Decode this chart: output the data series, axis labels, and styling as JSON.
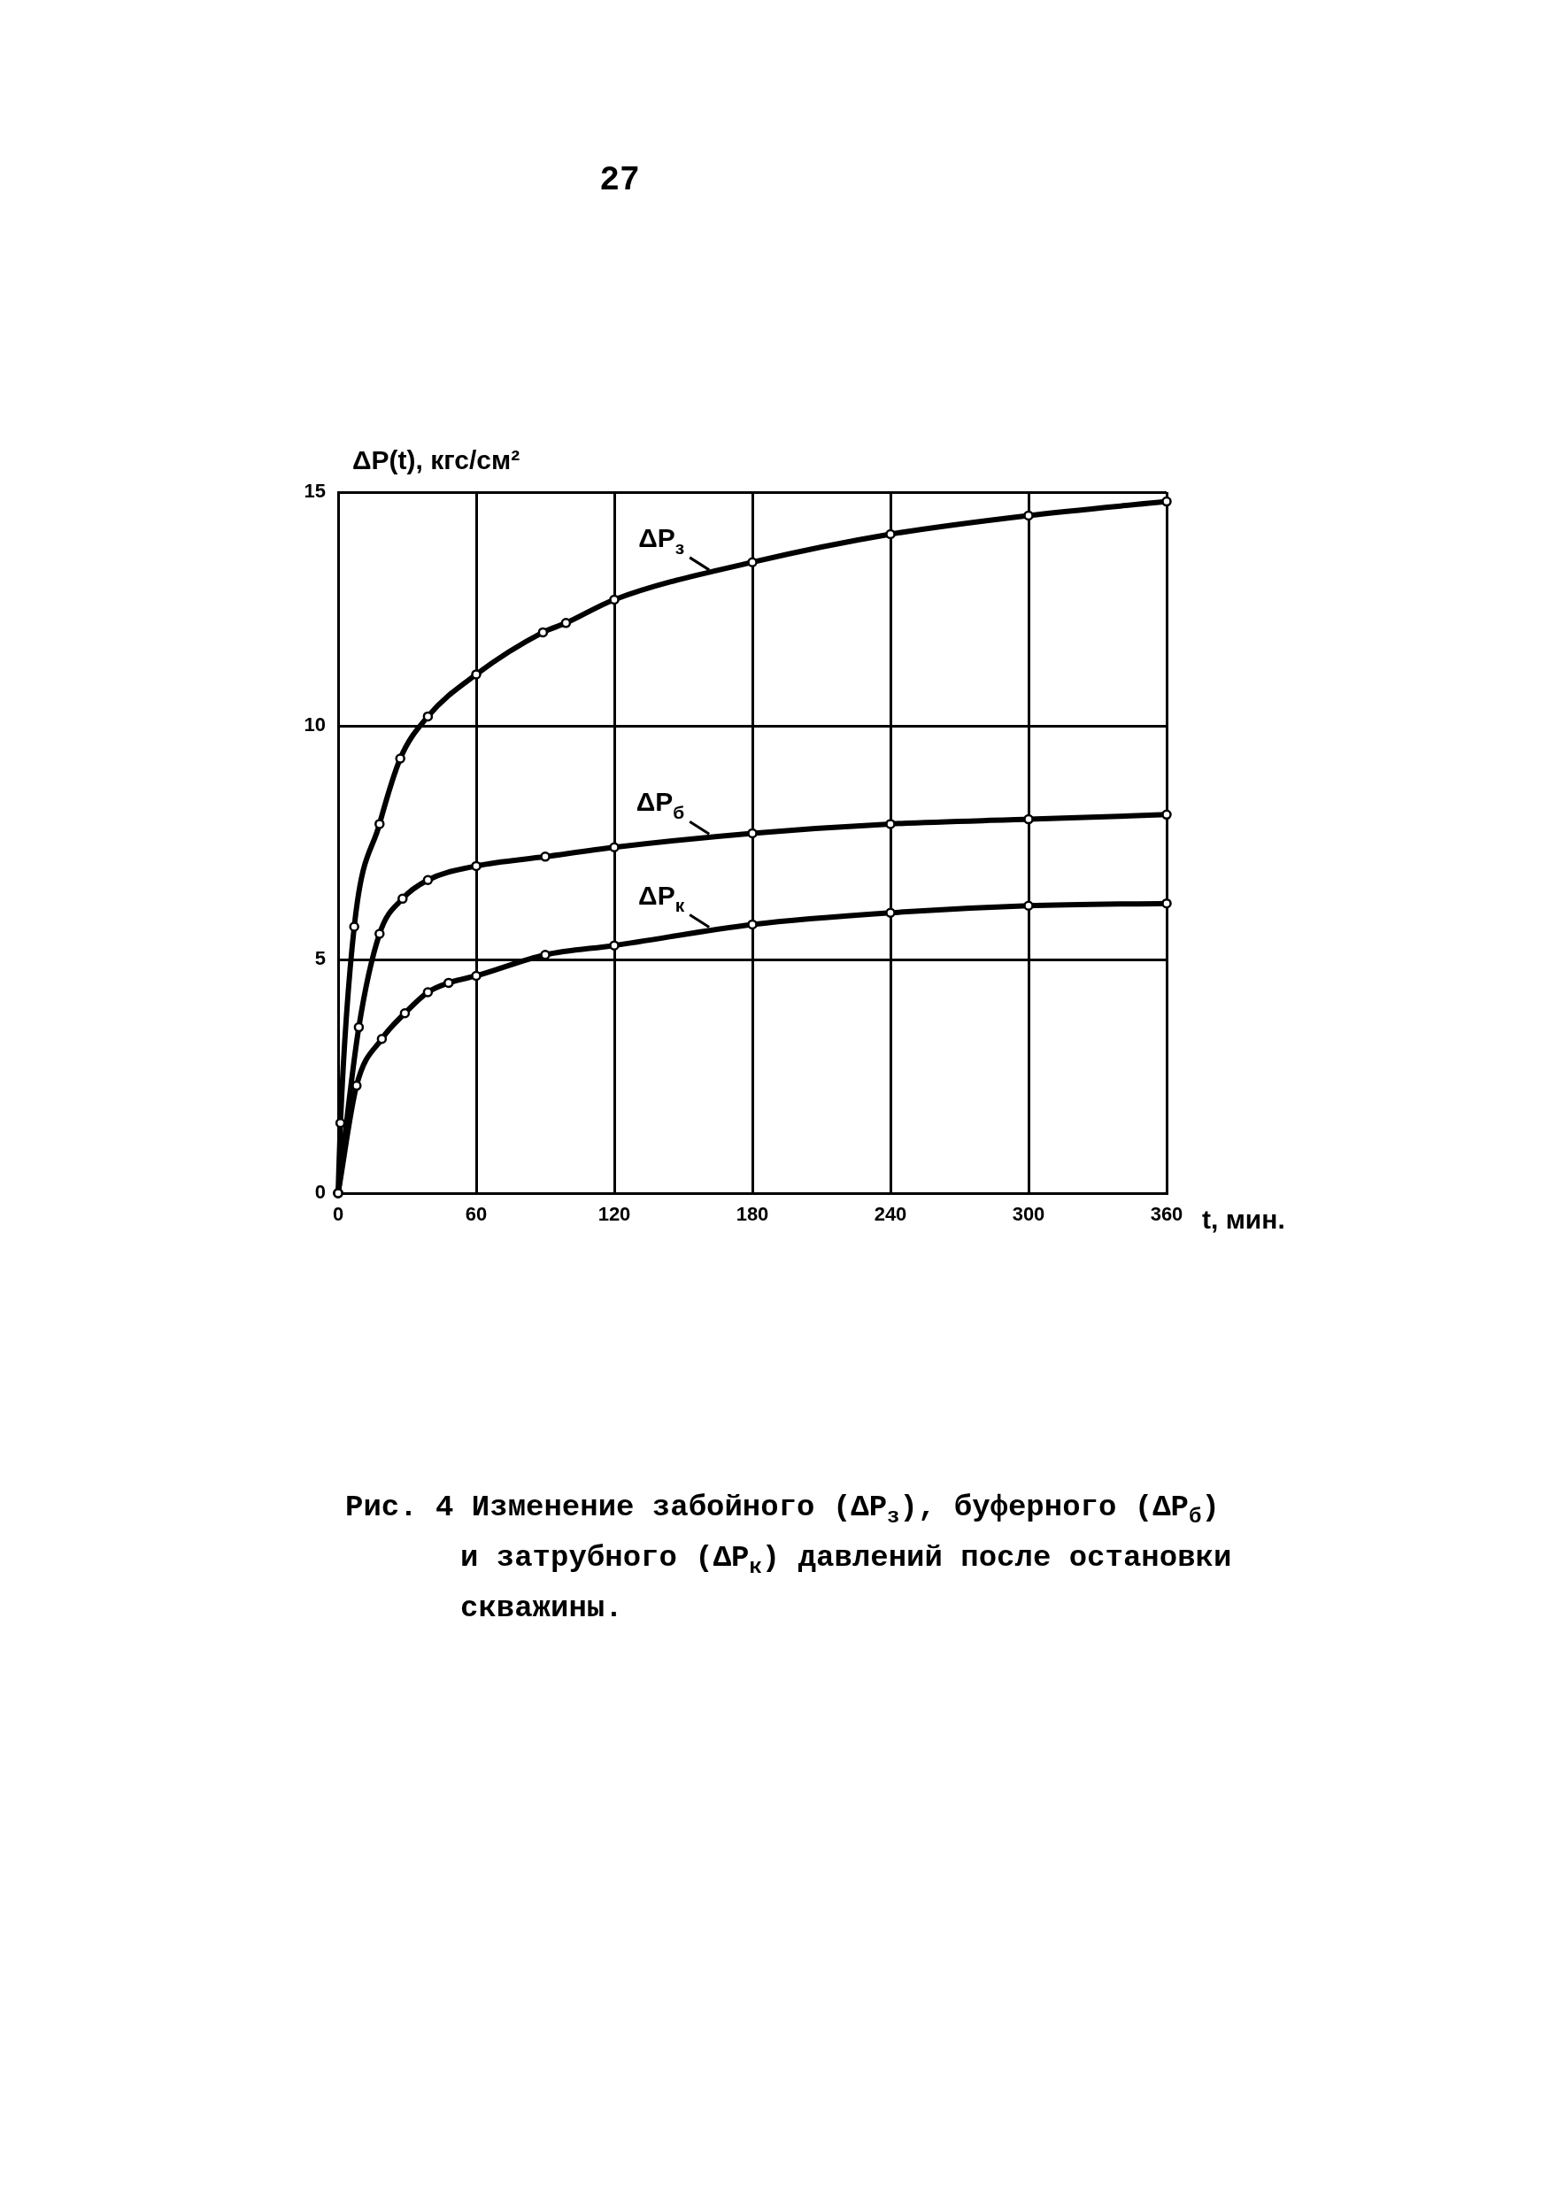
{
  "chart_data": {
    "type": "line",
    "xlabel": "t, мин.",
    "ylabel": "ΔP(t), кгс/см²",
    "annotations": [
      "27",
      "Рис. 4 Изменение забойного (ΔP$_{з}$), буферного (ΔP$_{б}$) и затрубного (ΔP$_{к}$) давлений после остановки скважины."
    ],
    "xlim": [
      0,
      360
    ],
    "xticks": [
      0,
      60,
      120,
      180,
      240,
      300,
      360
    ],
    "ylim": [
      0,
      15
    ],
    "yticks": [
      0,
      5,
      10,
      15
    ],
    "grid": true,
    "marker": "circle",
    "line_style": "solid",
    "series": [
      {
        "name": "ΔP$_{з}$",
        "color": "#000000",
        "x": [
          0,
          1,
          7,
          18,
          27,
          39,
          60,
          89,
          99,
          120,
          180,
          240,
          300,
          360
        ],
        "values": [
          0,
          1.5,
          5.7,
          7.9,
          9.3,
          10.2,
          11.1,
          12.0,
          12.2,
          12.7,
          13.5,
          14.1,
          14.5,
          14.8
        ]
      },
      {
        "name": "ΔP$_{б}$",
        "color": "#000000",
        "x": [
          0,
          9,
          18,
          28,
          39,
          60,
          90,
          120,
          180,
          240,
          300,
          360
        ],
        "values": [
          0,
          3.55,
          5.55,
          6.3,
          6.7,
          7.0,
          7.2,
          7.4,
          7.7,
          7.9,
          8.0,
          8.1
        ]
      },
      {
        "name": "ΔP$_{к}$",
        "color": "#000000",
        "x": [
          0,
          8,
          19,
          29,
          39,
          48,
          60,
          90,
          120,
          180,
          240,
          300,
          360
        ],
        "values": [
          0,
          2.3,
          3.3,
          3.85,
          4.3,
          4.5,
          4.65,
          5.1,
          5.3,
          5.75,
          6.0,
          6.15,
          6.2
        ]
      }
    ]
  }
}
